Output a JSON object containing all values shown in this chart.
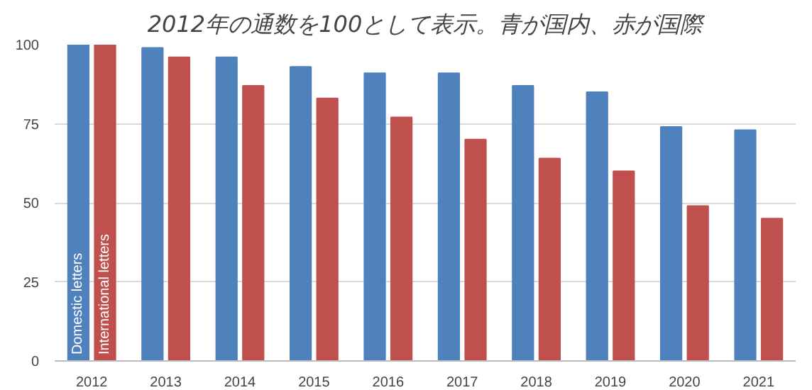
{
  "chart_data": {
    "type": "bar",
    "title": "2012年の通数を100として表示。青が国内、赤が国際",
    "categories": [
      "2012",
      "2013",
      "2014",
      "2015",
      "2016",
      "2017",
      "2018",
      "2019",
      "2020",
      "2021"
    ],
    "series": [
      {
        "name": "Domestic letters",
        "color": "#4f81bd",
        "values": [
          100,
          99,
          96,
          93,
          91,
          91,
          87,
          85,
          74,
          73
        ]
      },
      {
        "name": "International letters",
        "color": "#c0504d",
        "values": [
          100,
          96,
          87,
          83,
          77,
          70,
          64,
          60,
          49,
          45
        ]
      }
    ],
    "ylim": [
      0,
      100
    ],
    "yticks": [
      0,
      25,
      50,
      75,
      100
    ],
    "grid": "y"
  }
}
